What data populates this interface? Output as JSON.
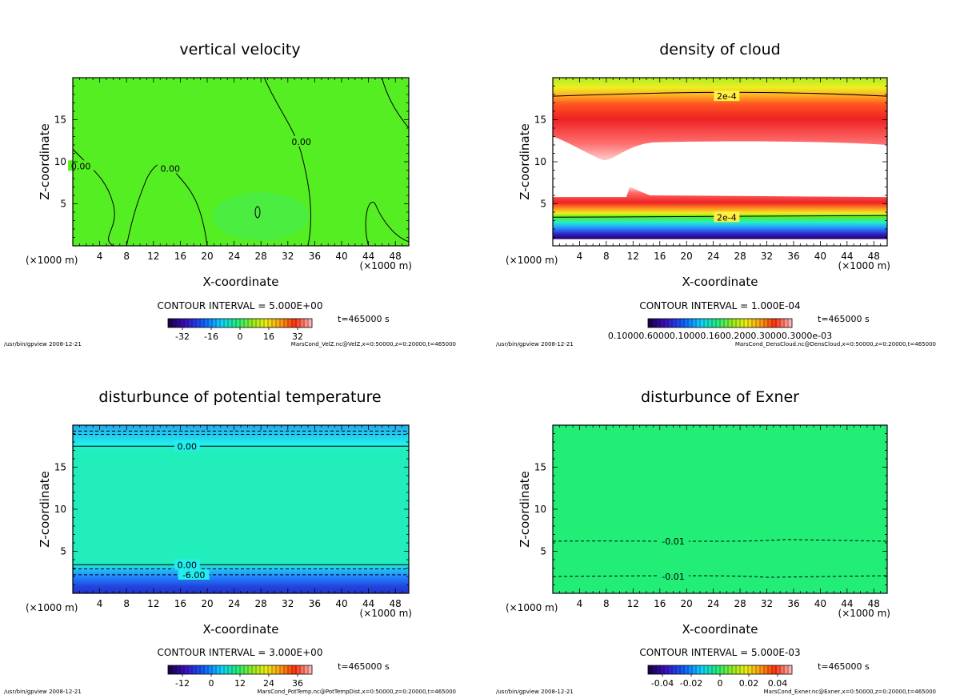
{
  "chart_data": [
    {
      "type": "heatmap",
      "title": "vertical velocity",
      "xlabel": "X-coordinate",
      "ylabel": "Z-coordinate",
      "x_unit": "(×1000 m)",
      "xlim": [
        0,
        50
      ],
      "ylim": [
        0,
        20
      ],
      "x_ticks": [
        "4",
        "8",
        "12",
        "16",
        "20",
        "24",
        "28",
        "32",
        "36",
        "40",
        "44",
        "48"
      ],
      "y_ticks": [
        "5",
        "10",
        "15"
      ],
      "field_color": "#55ee22",
      "contour_labels": [
        {
          "text": "0.00",
          "x": 1.2,
          "y": 9.5
        },
        {
          "text": "0.00",
          "x": 14.5,
          "y": 9.2
        },
        {
          "text": "0.00",
          "x": 34,
          "y": 12.4
        }
      ],
      "contour_interval": "CONTOUR INTERVAL = 5.000E+00",
      "time": "t=465000 s",
      "colorbar": {
        "ticks": [
          "-32",
          "-16",
          "0",
          "16",
          "32"
        ],
        "min": -40,
        "max": 40,
        "tick_values": [
          -32,
          -16,
          0,
          16,
          32
        ]
      },
      "footer_left": "/usr/bin/gpview   2008-12-21",
      "footer_right": "MarsCond_VelZ.nc@VelZ,x=0:50000,z=0:20000,t=465000"
    },
    {
      "type": "heatmap",
      "title": "density of cloud",
      "xlabel": "X-coordinate",
      "ylabel": "Z-coordinate",
      "x_unit": "(×1000 m)",
      "xlim": [
        0,
        50
      ],
      "ylim": [
        0,
        20
      ],
      "x_ticks": [
        "4",
        "8",
        "12",
        "16",
        "20",
        "24",
        "28",
        "32",
        "36",
        "40",
        "44",
        "48"
      ],
      "y_ticks": [
        "5",
        "10",
        "15"
      ],
      "contour_labels": [
        {
          "text": "2e-4",
          "x": 26,
          "y": 17.8
        },
        {
          "text": "2e-4",
          "x": 26,
          "y": 3.4
        }
      ],
      "contour_interval": "CONTOUR INTERVAL = 1.000E-04",
      "time": "t=465000 s",
      "colorbar": {
        "ticks": [
          "0.10000.60000.10000.1600.2000.30000.3000e-03"
        ]
      },
      "footer_left": "/usr/bin/gpview   2008-12-21",
      "footer_right": "MarsCond_DensCloud.nc@DensCloud,x=0:50000,z=0:20000,t=465000"
    },
    {
      "type": "heatmap",
      "title": "disturbunce of potential temperature",
      "xlabel": "X-coordinate",
      "ylabel": "Z-coordinate",
      "x_unit": "(×1000 m)",
      "xlim": [
        0,
        50
      ],
      "ylim": [
        0,
        20
      ],
      "x_ticks": [
        "4",
        "8",
        "12",
        "16",
        "20",
        "24",
        "28",
        "32",
        "36",
        "40",
        "44",
        "48"
      ],
      "y_ticks": [
        "5",
        "10",
        "15"
      ],
      "contour_labels": [
        {
          "text": "0.00",
          "x": 17,
          "y": 17.5
        },
        {
          "text": "0.00",
          "x": 17,
          "y": 3.4
        },
        {
          "text": "-6.00",
          "x": 18,
          "y": 2.2
        }
      ],
      "contour_interval": "CONTOUR INTERVAL = 3.000E+00",
      "time": "t=465000 s",
      "colorbar": {
        "ticks": [
          "-12",
          "0",
          "12",
          "24",
          "36"
        ],
        "min": -18,
        "max": 42,
        "tick_values": [
          -12,
          0,
          12,
          24,
          36
        ]
      },
      "footer_left": "/usr/bin/gpview   2008-12-21",
      "footer_right": "MarsCond_PotTemp.nc@PotTempDist,x=0:50000,z=0:20000,t=465000"
    },
    {
      "type": "heatmap",
      "title": "disturbunce of Exner",
      "xlabel": "X-coordinate",
      "ylabel": "Z-coordinate",
      "x_unit": "(×1000 m)",
      "xlim": [
        0,
        50
      ],
      "ylim": [
        0,
        20
      ],
      "x_ticks": [
        "4",
        "8",
        "12",
        "16",
        "20",
        "24",
        "28",
        "32",
        "36",
        "40",
        "44",
        "48"
      ],
      "y_ticks": [
        "5",
        "10",
        "15"
      ],
      "field_color": "#22ee77",
      "contour_labels": [
        {
          "text": "-0.01",
          "x": 18,
          "y": 6.2
        },
        {
          "text": "-0.01",
          "x": 18,
          "y": 2.0
        }
      ],
      "contour_interval": "CONTOUR INTERVAL = 5.000E-03",
      "time": "t=465000 s",
      "colorbar": {
        "ticks": [
          "-0.04",
          "-0.02",
          "0",
          "0.02",
          "0.04"
        ],
        "min": -0.05,
        "max": 0.05,
        "tick_values": [
          -0.04,
          -0.02,
          0,
          0.02,
          0.04
        ]
      },
      "footer_left": "/usr/bin/gpview   2008-12-21",
      "footer_right": "MarsCond_Exner.nc@Exner,x=0:50000,z=0:20000,t=465000"
    }
  ]
}
